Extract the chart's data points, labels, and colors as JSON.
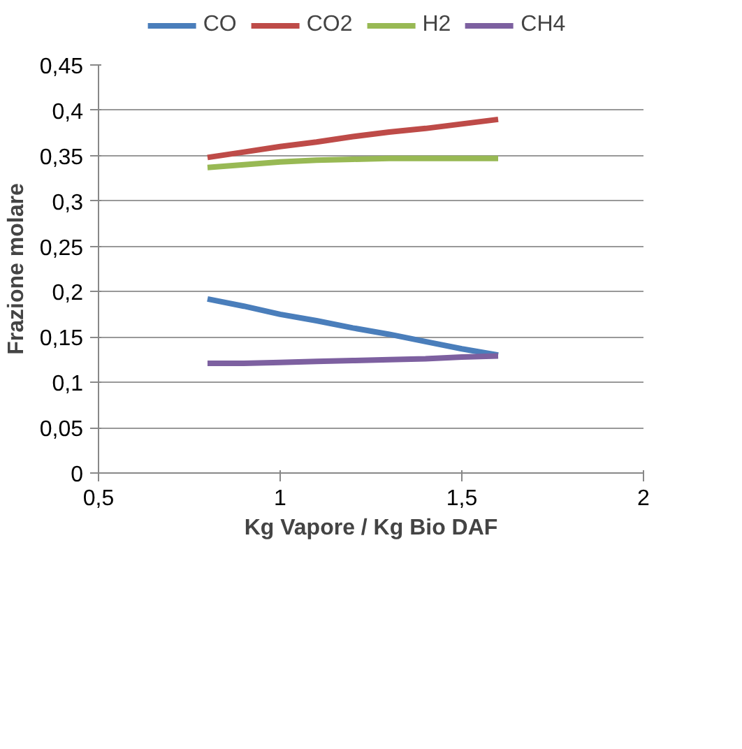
{
  "chart_data": {
    "type": "line",
    "xlabel": "Kg Vapore / Kg Bio DAF",
    "ylabel": "Frazione molare",
    "x": [
      0.8,
      0.9,
      1.0,
      1.1,
      1.2,
      1.3,
      1.4,
      1.5,
      1.6
    ],
    "series": [
      {
        "name": "CO",
        "color": "#4a7ebb",
        "values": [
          0.192,
          0.184,
          0.175,
          0.168,
          0.16,
          0.153,
          0.145,
          0.137,
          0.13
        ]
      },
      {
        "name": "CO2",
        "color": "#be4b48",
        "values": [
          0.348,
          0.354,
          0.36,
          0.365,
          0.371,
          0.376,
          0.38,
          0.385,
          0.39
        ]
      },
      {
        "name": "H2",
        "color": "#98b954",
        "values": [
          0.337,
          0.34,
          0.343,
          0.345,
          0.346,
          0.347,
          0.347,
          0.347,
          0.347
        ]
      },
      {
        "name": "CH4",
        "color": "#7d60a0",
        "values": [
          0.121,
          0.121,
          0.122,
          0.123,
          0.124,
          0.125,
          0.126,
          0.128,
          0.129
        ]
      }
    ],
    "xlim": [
      0.5,
      2
    ],
    "xticks": [
      {
        "value": 0.5,
        "label": "0,5"
      },
      1,
      {
        "value": 1.5,
        "label": "1,5"
      },
      2
    ],
    "ylim": [
      0,
      0.45
    ],
    "yticks": [
      0,
      {
        "value": 0.05,
        "label": "0,05"
      },
      {
        "value": 0.1,
        "label": "0,1"
      },
      {
        "value": 0.15,
        "label": "0,15"
      },
      {
        "value": 0.2,
        "label": "0,2"
      },
      {
        "value": 0.25,
        "label": "0,25"
      },
      {
        "value": 0.3,
        "label": "0,3"
      },
      {
        "value": 0.35,
        "label": "0,35"
      },
      {
        "value": 0.4,
        "label": "0,4"
      },
      {
        "value": 0.45,
        "label": "0,45"
      }
    ],
    "grid": "y",
    "legend": "top",
    "marker": "none",
    "line_style": "solid"
  }
}
